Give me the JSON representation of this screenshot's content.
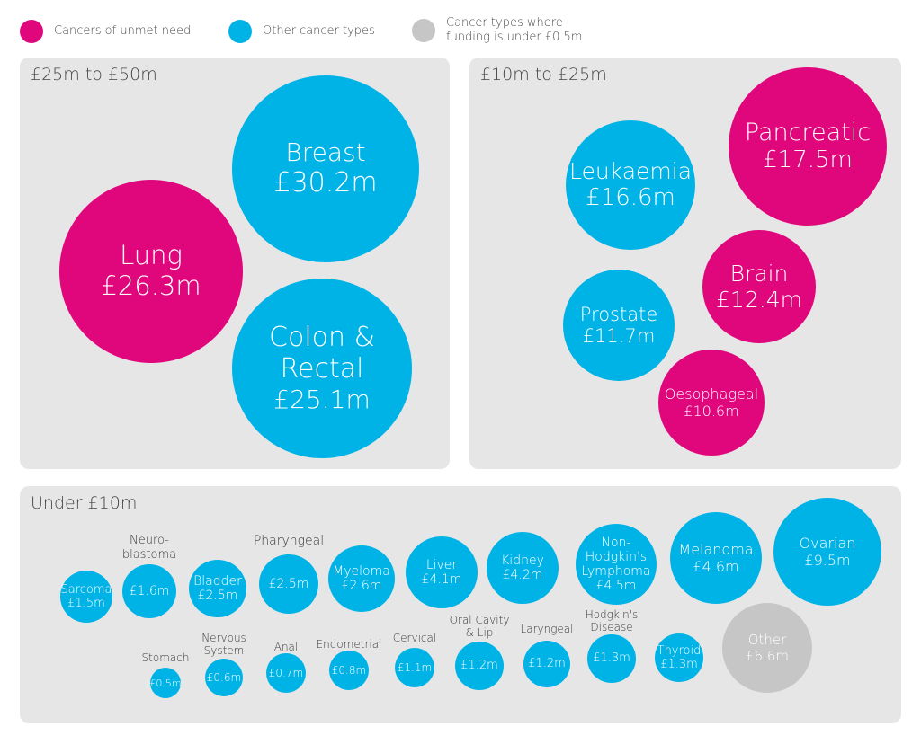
{
  "legend": {
    "unmet": {
      "label": "Cancers of unmet need",
      "color": "#e0077d"
    },
    "other": {
      "label": "Other cancer types",
      "color": "#00b3e6"
    },
    "under": {
      "label": "Cancer types where\nfunding is under £0.5m",
      "color": "#c6c6c6"
    }
  },
  "panels": {
    "large": {
      "title": "£25m to £50m"
    },
    "medium": {
      "title": "£10m to £25m"
    },
    "small": {
      "title": "Under £10m"
    }
  },
  "chart_data": {
    "type": "bubble",
    "unit": "£m",
    "groups": [
      {
        "title": "£25m to £50m",
        "items": [
          {
            "name": "Breast",
            "value": 30.2,
            "label": "£30.2m",
            "category": "other"
          },
          {
            "name": "Lung",
            "value": 26.3,
            "label": "£26.3m",
            "category": "unmet"
          },
          {
            "name": "Colon & Rectal",
            "value": 25.1,
            "label": "£25.1m",
            "category": "other"
          }
        ]
      },
      {
        "title": "£10m to £25m",
        "items": [
          {
            "name": "Pancreatic",
            "value": 17.5,
            "label": "£17.5m",
            "category": "unmet"
          },
          {
            "name": "Leukaemia",
            "value": 16.6,
            "label": "£16.6m",
            "category": "other"
          },
          {
            "name": "Brain",
            "value": 12.4,
            "label": "£12.4m",
            "category": "unmet"
          },
          {
            "name": "Prostate",
            "value": 11.7,
            "label": "£11.7m",
            "category": "other"
          },
          {
            "name": "Oesophageal",
            "value": 10.6,
            "label": "£10.6m",
            "category": "unmet"
          }
        ]
      },
      {
        "title": "Under £10m",
        "items": [
          {
            "name": "Sarcoma",
            "value": 1.5,
            "label": "£1.5m",
            "category": "other"
          },
          {
            "name": "Neuro-\nblastoma",
            "value": 1.6,
            "label": "£1.6m",
            "category": "other"
          },
          {
            "name": "Bladder",
            "value": 2.5,
            "label": "£2.5m",
            "category": "other"
          },
          {
            "name": "Pharyngeal",
            "value": 2.5,
            "label": "£2.5m",
            "category": "other"
          },
          {
            "name": "Myeloma",
            "value": 2.6,
            "label": "£2.6m",
            "category": "other"
          },
          {
            "name": "Liver",
            "value": 4.1,
            "label": "£4.1m",
            "category": "other"
          },
          {
            "name": "Kidney",
            "value": 4.2,
            "label": "£4.2m",
            "category": "other"
          },
          {
            "name": "Non-\nHodgkin's\nLymphoma",
            "value": 4.5,
            "label": "£4.5m",
            "category": "other"
          },
          {
            "name": "Melanoma",
            "value": 4.6,
            "label": "£4.6m",
            "category": "other"
          },
          {
            "name": "Ovarian",
            "value": 9.5,
            "label": "£9.5m",
            "category": "other"
          },
          {
            "name": "Stomach",
            "value": 0.5,
            "label": "£0.5m",
            "category": "other"
          },
          {
            "name": "Nervous\nSystem",
            "value": 0.6,
            "label": "£0.6m",
            "category": "other"
          },
          {
            "name": "Anal",
            "value": 0.7,
            "label": "£0.7m",
            "category": "other"
          },
          {
            "name": "Endometrial",
            "value": 0.8,
            "label": "£0.8m",
            "category": "other"
          },
          {
            "name": "Cervical",
            "value": 1.1,
            "label": "£1.1m",
            "category": "other"
          },
          {
            "name": "Oral Cavity\n& Lip",
            "value": 1.2,
            "label": "£1.2m",
            "category": "other"
          },
          {
            "name": "Laryngeal",
            "value": 1.2,
            "label": "£1.2m",
            "category": "other"
          },
          {
            "name": "Hodgkin's\nDisease",
            "value": 1.3,
            "label": "£1.3m",
            "category": "other"
          },
          {
            "name": "Thyroid",
            "value": 1.3,
            "label": "£1.3m",
            "category": "other"
          },
          {
            "name": "Other",
            "value": 6.6,
            "label": "£6.6m",
            "category": "under"
          }
        ]
      }
    ]
  }
}
